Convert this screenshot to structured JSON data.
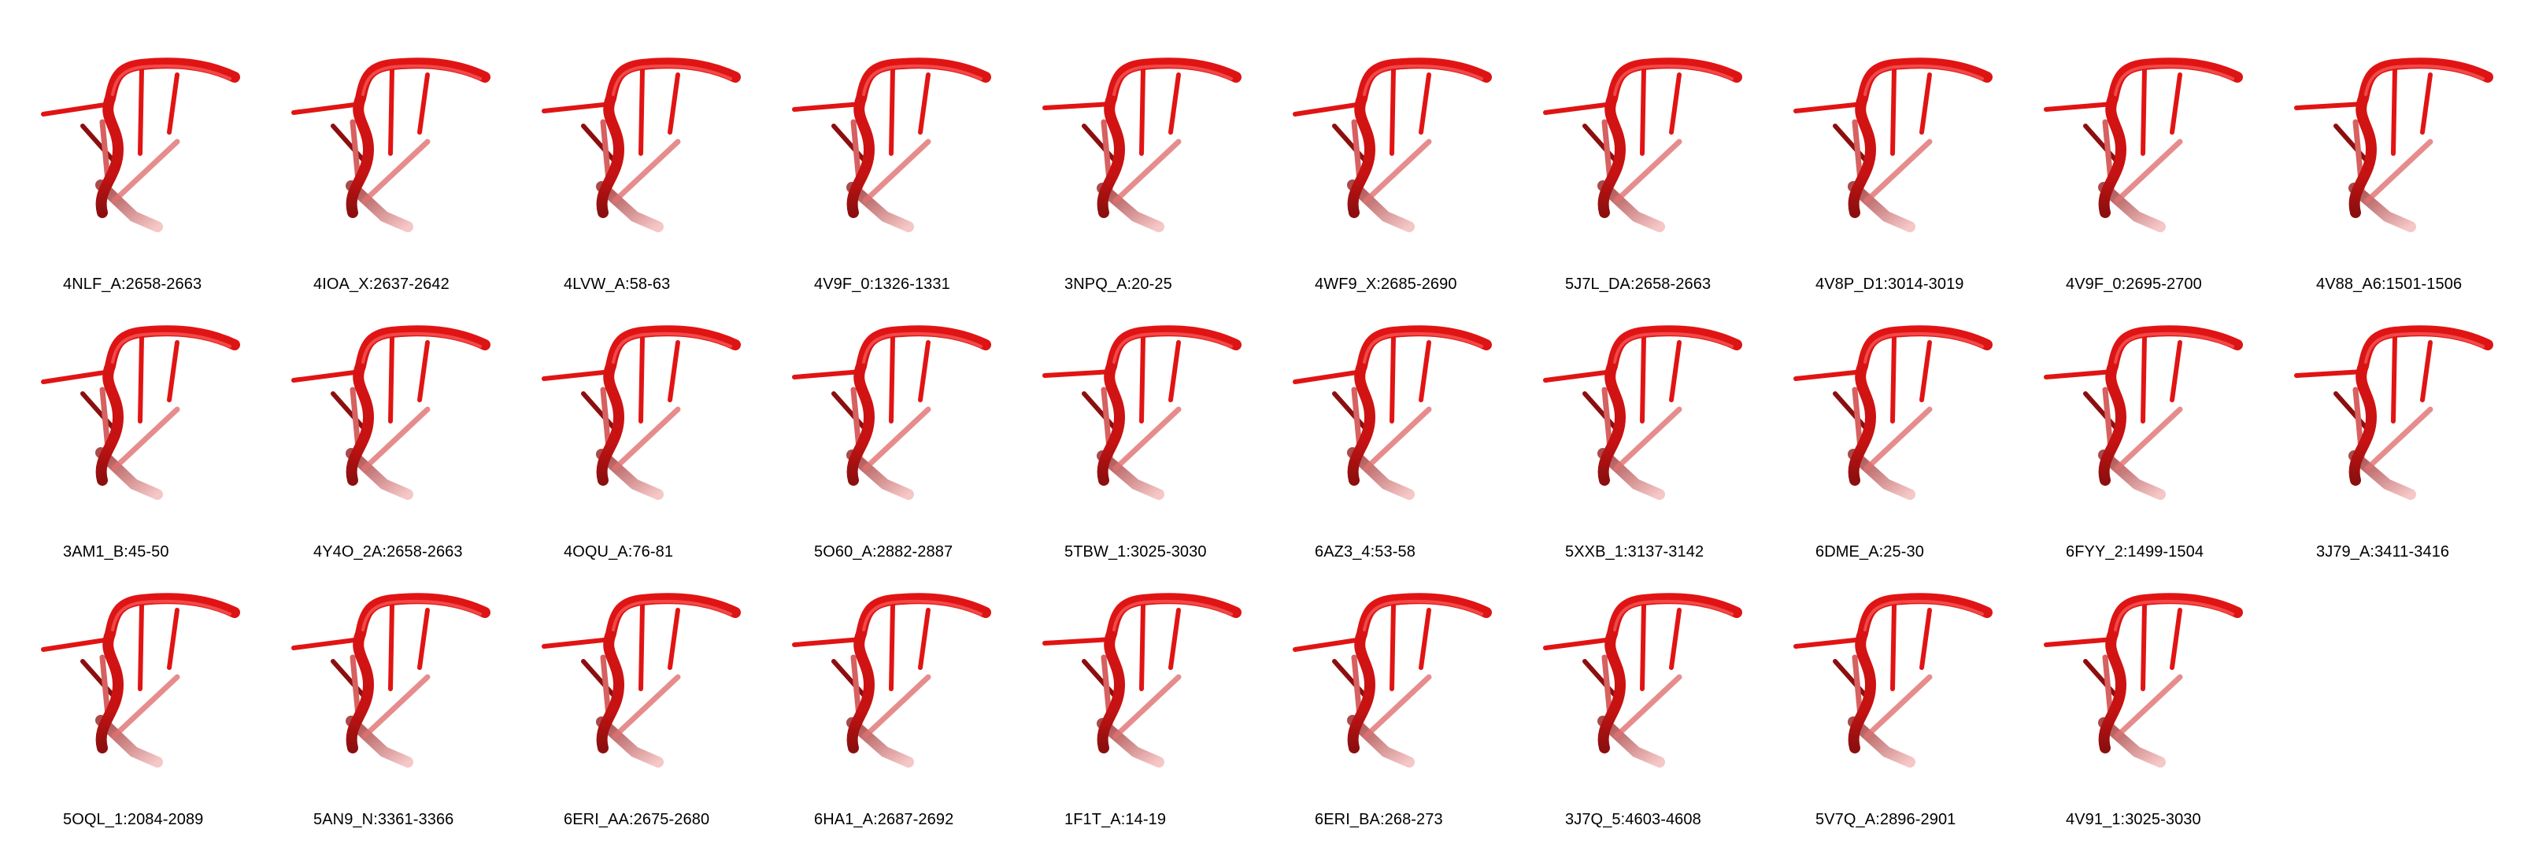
{
  "structures": [
    {
      "label": "4NLF_A:2658-2663"
    },
    {
      "label": "4IOA_X:2637-2642"
    },
    {
      "label": "4LVW_A:58-63"
    },
    {
      "label": "4V9F_0:1326-1331"
    },
    {
      "label": "3NPQ_A:20-25"
    },
    {
      "label": "4WF9_X:2685-2690"
    },
    {
      "label": "5J7L_DA:2658-2663"
    },
    {
      "label": "4V8P_D1:3014-3019"
    },
    {
      "label": "4V9F_0:2695-2700"
    },
    {
      "label": "4V88_A6:1501-1506"
    },
    {
      "label": "3AM1_B:45-50"
    },
    {
      "label": "4Y4O_2A:2658-2663"
    },
    {
      "label": "4OQU_A:76-81"
    },
    {
      "label": "5O60_A:2882-2887"
    },
    {
      "label": "5TBW_1:3025-3030"
    },
    {
      "label": "6AZ3_4:53-58"
    },
    {
      "label": "5XXB_1:3137-3142"
    },
    {
      "label": "6DME_A:25-30"
    },
    {
      "label": "6FYY_2:1499-1504"
    },
    {
      "label": "3J79_A:3411-3416"
    },
    {
      "label": "5OQL_1:2084-2089"
    },
    {
      "label": "5AN9_N:3361-3366"
    },
    {
      "label": "6ERI_AA:2675-2680"
    },
    {
      "label": "6HA1_A:2687-2692"
    },
    {
      "label": "1F1T_A:14-19"
    },
    {
      "label": "6ERI_BA:268-273"
    },
    {
      "label": "3J7Q_5:4603-4608"
    },
    {
      "label": "5V7Q_A:2896-2901"
    },
    {
      "label": "4V91_1:3025-3030"
    }
  ],
  "colors": {
    "backbone": "#e11414",
    "backbone_dark": "#8c0f0f",
    "fade": "#f2b4b4"
  }
}
